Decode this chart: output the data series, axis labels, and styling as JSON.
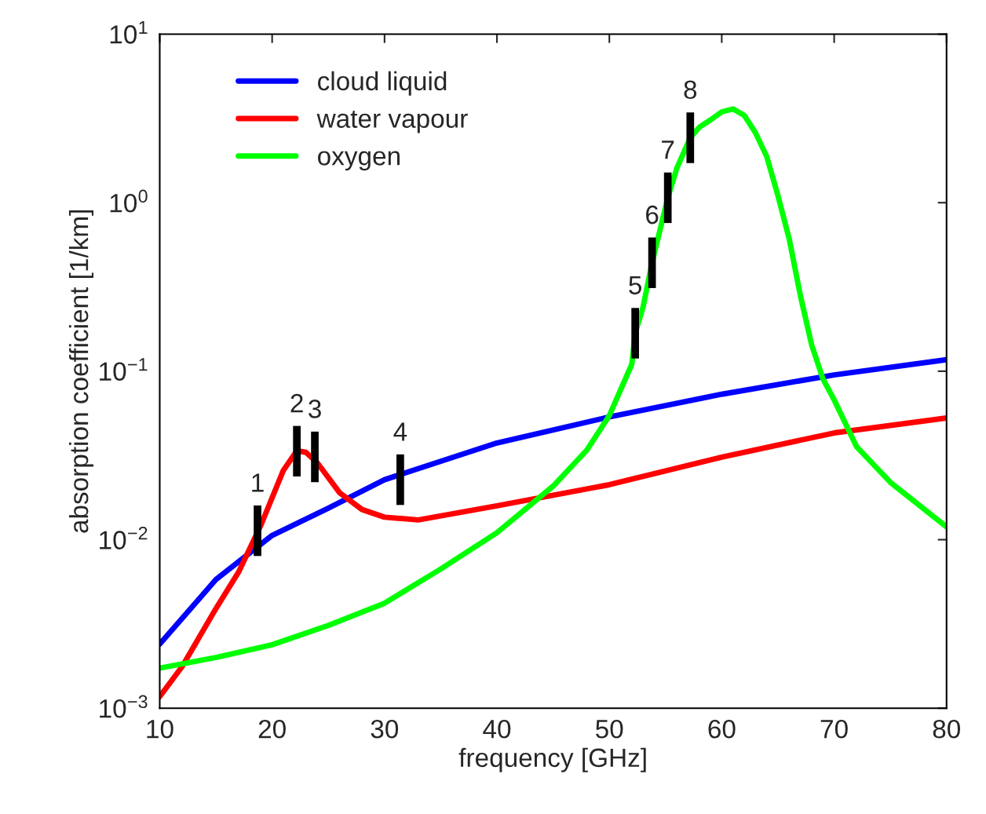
{
  "chart_data": {
    "type": "line",
    "xlabel": "frequency [GHz]",
    "ylabel": "absorption coefficient [1/km]",
    "log": "y",
    "xlim": [
      10,
      80
    ],
    "ylim": [
      0.001,
      10
    ],
    "xticks": [
      10,
      20,
      30,
      40,
      50,
      60,
      70,
      80
    ],
    "yticks": [
      {
        "value": 0.001,
        "label": "10$^{−3}$"
      },
      {
        "value": 0.01,
        "label": "10$^{−2}$"
      },
      {
        "value": 0.1,
        "label": "10$^{−1}$"
      },
      {
        "value": 1,
        "label": "10$^{0}$"
      },
      {
        "value": 10,
        "label": "10$^{1}$"
      }
    ],
    "grid": false,
    "legend": "top left",
    "marker": "none",
    "line_style": "solid",
    "series": [
      {
        "name": "cloud liquid",
        "color": "#0000ff",
        "x": [
          10,
          15,
          20,
          25,
          30,
          40,
          50,
          60,
          70,
          80
        ],
        "values": [
          0.0024,
          0.0058,
          0.0106,
          0.0154,
          0.0227,
          0.0375,
          0.0535,
          0.073,
          0.095,
          0.117
        ]
      },
      {
        "name": "water vapour",
        "color": "#ff0000",
        "x": [
          10,
          12,
          15,
          17,
          19,
          21,
          22.2,
          23,
          24,
          26,
          28,
          30,
          33,
          40,
          50,
          60,
          70,
          80
        ],
        "values": [
          0.00117,
          0.00177,
          0.0039,
          0.0064,
          0.0122,
          0.0258,
          0.0337,
          0.033,
          0.0287,
          0.019,
          0.0151,
          0.0136,
          0.0131,
          0.0159,
          0.0212,
          0.0309,
          0.043,
          0.0528
        ]
      },
      {
        "name": "oxygen",
        "color": "#00ff00",
        "x": [
          10,
          15,
          20,
          25,
          30,
          35,
          40,
          45,
          48,
          50,
          52,
          52.3,
          53,
          53.8,
          55.2,
          56,
          57.2,
          58,
          59,
          60,
          61,
          62,
          63,
          64,
          65,
          66,
          67,
          68,
          69,
          70,
          72,
          75,
          80
        ],
        "values": [
          0.00173,
          0.002,
          0.00238,
          0.0031,
          0.0042,
          0.0067,
          0.011,
          0.0208,
          0.034,
          0.0546,
          0.11,
          0.168,
          0.24,
          0.44,
          1.07,
          1.6,
          2.43,
          2.8,
          3.1,
          3.46,
          3.6,
          3.3,
          2.6,
          1.88,
          1.1,
          0.61,
          0.28,
          0.143,
          0.09,
          0.0676,
          0.0356,
          0.0219,
          0.0119
        ]
      }
    ],
    "annotations": [
      {
        "text": "1",
        "x": 18.7,
        "y": 0.0113
      },
      {
        "text": "2",
        "x": 22.2,
        "y": 0.0335
      },
      {
        "text": "3",
        "x": 23.8,
        "y": 0.031
      },
      {
        "text": "4",
        "x": 31.4,
        "y": 0.0227
      },
      {
        "text": "5",
        "x": 52.3,
        "y": 0.168
      },
      {
        "text": "6",
        "x": 53.8,
        "y": 0.44
      },
      {
        "text": "7",
        "x": 55.2,
        "y": 1.07
      },
      {
        "text": "8",
        "x": 57.2,
        "y": 2.43
      }
    ]
  }
}
